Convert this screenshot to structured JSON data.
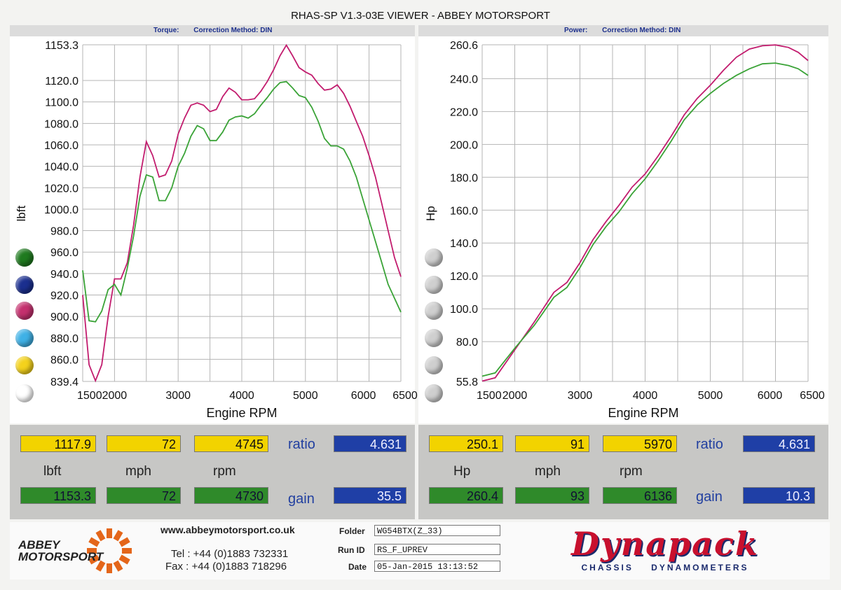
{
  "title": "RHAS-SP V1.3-03E VIEWER - ABBEY MOTORSPORT",
  "torque_header": {
    "label": "Torque:",
    "method": "Correction Method: DIN"
  },
  "power_header": {
    "label": "Power:",
    "method": "Correction Method: DIN"
  },
  "chart_data": [
    {
      "type": "line",
      "title": "Torque",
      "xlabel": "Engine RPM",
      "ylabel": "lbft",
      "xlim": [
        1500,
        6500
      ],
      "ylim": [
        839.4,
        1153.3
      ],
      "xticks": [
        "1500",
        "2000",
        "3000",
        "4000",
        "5000",
        "6000",
        "6500"
      ],
      "yticks": [
        "1153.3",
        "1120.0",
        "1100.0",
        "1080.0",
        "1060.0",
        "1040.0",
        "1020.0",
        "1000.0",
        "980.0",
        "960.0",
        "940.0",
        "920.0",
        "900.0",
        "880.0",
        "860.0",
        "839.4"
      ],
      "grid": true,
      "series": [
        {
          "color": "#c21c6e",
          "points": [
            [
              1500,
              920
            ],
            [
              1600,
              855
            ],
            [
              1700,
              840
            ],
            [
              1800,
              855
            ],
            [
              1900,
              900
            ],
            [
              2000,
              935
            ],
            [
              2100,
              935
            ],
            [
              2200,
              950
            ],
            [
              2300,
              985
            ],
            [
              2400,
              1030
            ],
            [
              2500,
              1063
            ],
            [
              2600,
              1050
            ],
            [
              2700,
              1030
            ],
            [
              2800,
              1032
            ],
            [
              2900,
              1045
            ],
            [
              3000,
              1070
            ],
            [
              3100,
              1085
            ],
            [
              3200,
              1097
            ],
            [
              3300,
              1099
            ],
            [
              3400,
              1097
            ],
            [
              3500,
              1091
            ],
            [
              3600,
              1093
            ],
            [
              3700,
              1105
            ],
            [
              3800,
              1113
            ],
            [
              3900,
              1109
            ],
            [
              4000,
              1102
            ],
            [
              4100,
              1102
            ],
            [
              4200,
              1103
            ],
            [
              4300,
              1110
            ],
            [
              4400,
              1119
            ],
            [
              4500,
              1130
            ],
            [
              4600,
              1143
            ],
            [
              4700,
              1153
            ],
            [
              4800,
              1143
            ],
            [
              4900,
              1132
            ],
            [
              5000,
              1128
            ],
            [
              5100,
              1125
            ],
            [
              5200,
              1117
            ],
            [
              5300,
              1111
            ],
            [
              5400,
              1112
            ],
            [
              5500,
              1116
            ],
            [
              5600,
              1108
            ],
            [
              5700,
              1096
            ],
            [
              5800,
              1082
            ],
            [
              5900,
              1068
            ],
            [
              6000,
              1050
            ],
            [
              6100,
              1030
            ],
            [
              6200,
              1005
            ],
            [
              6300,
              980
            ],
            [
              6400,
              955
            ],
            [
              6500,
              937
            ]
          ]
        },
        {
          "color": "#3aa337",
          "points": [
            [
              1500,
              943
            ],
            [
              1600,
              896
            ],
            [
              1700,
              895
            ],
            [
              1800,
              905
            ],
            [
              1900,
              925
            ],
            [
              2000,
              930
            ],
            [
              2100,
              920
            ],
            [
              2200,
              945
            ],
            [
              2300,
              975
            ],
            [
              2400,
              1012
            ],
            [
              2500,
              1032
            ],
            [
              2600,
              1030
            ],
            [
              2700,
              1008
            ],
            [
              2800,
              1008
            ],
            [
              2900,
              1020
            ],
            [
              3000,
              1040
            ],
            [
              3100,
              1052
            ],
            [
              3200,
              1068
            ],
            [
              3300,
              1078
            ],
            [
              3400,
              1075
            ],
            [
              3500,
              1064
            ],
            [
              3600,
              1064
            ],
            [
              3700,
              1072
            ],
            [
              3800,
              1083
            ],
            [
              3900,
              1086
            ],
            [
              4000,
              1087
            ],
            [
              4100,
              1085
            ],
            [
              4200,
              1089
            ],
            [
              4300,
              1097
            ],
            [
              4400,
              1104
            ],
            [
              4500,
              1112
            ],
            [
              4600,
              1118
            ],
            [
              4700,
              1119
            ],
            [
              4800,
              1113
            ],
            [
              4900,
              1106
            ],
            [
              5000,
              1104
            ],
            [
              5100,
              1095
            ],
            [
              5200,
              1082
            ],
            [
              5300,
              1066
            ],
            [
              5400,
              1059
            ],
            [
              5500,
              1059
            ],
            [
              5600,
              1056
            ],
            [
              5700,
              1045
            ],
            [
              5800,
              1030
            ],
            [
              5900,
              1010
            ],
            [
              6000,
              990
            ],
            [
              6100,
              970
            ],
            [
              6200,
              950
            ],
            [
              6300,
              930
            ],
            [
              6400,
              917
            ],
            [
              6500,
              904
            ]
          ]
        }
      ]
    },
    {
      "type": "line",
      "title": "Power",
      "xlabel": "Engine RPM",
      "ylabel": "Hp",
      "xlim": [
        1500,
        6500
      ],
      "ylim": [
        55.8,
        260.6
      ],
      "xticks": [
        "1500",
        "2000",
        "3000",
        "4000",
        "5000",
        "6000",
        "6500"
      ],
      "yticks": [
        "260.6",
        "240.0",
        "220.0",
        "200.0",
        "180.0",
        "160.0",
        "140.0",
        "120.0",
        "100.0",
        "80.0",
        "55.8"
      ],
      "grid": true,
      "series": [
        {
          "color": "#c21c6e",
          "points": [
            [
              1500,
              56
            ],
            [
              1700,
              58
            ],
            [
              2000,
              75
            ],
            [
              2300,
              92
            ],
            [
              2600,
              110
            ],
            [
              2800,
              116
            ],
            [
              3000,
              128
            ],
            [
              3200,
              142
            ],
            [
              3400,
              153
            ],
            [
              3600,
              163
            ],
            [
              3800,
              174
            ],
            [
              4000,
              182
            ],
            [
              4200,
              193
            ],
            [
              4400,
              205
            ],
            [
              4600,
              218
            ],
            [
              4800,
              228
            ],
            [
              5000,
              236
            ],
            [
              5200,
              245
            ],
            [
              5400,
              253
            ],
            [
              5600,
              258
            ],
            [
              5800,
              260
            ],
            [
              6000,
              260.5
            ],
            [
              6200,
              259
            ],
            [
              6350,
              256
            ],
            [
              6500,
              251
            ]
          ]
        },
        {
          "color": "#3aa337",
          "points": [
            [
              1500,
              59
            ],
            [
              1700,
              61
            ],
            [
              2000,
              76
            ],
            [
              2300,
              90
            ],
            [
              2600,
              107
            ],
            [
              2800,
              113
            ],
            [
              3000,
              125
            ],
            [
              3200,
              139
            ],
            [
              3400,
              150
            ],
            [
              3600,
              159
            ],
            [
              3800,
              170
            ],
            [
              4000,
              179
            ],
            [
              4200,
              190
            ],
            [
              4400,
              202
            ],
            [
              4600,
              215
            ],
            [
              4800,
              224
            ],
            [
              5000,
              231
            ],
            [
              5200,
              237
            ],
            [
              5400,
              242
            ],
            [
              5600,
              246
            ],
            [
              5800,
              249
            ],
            [
              6000,
              249.5
            ],
            [
              6200,
              248
            ],
            [
              6350,
              246
            ],
            [
              6500,
              242
            ]
          ]
        }
      ]
    }
  ],
  "legend_colors": [
    "#b8141a",
    "#1f7a1f",
    "#1b2f8f",
    "#c4306e",
    "#3fb1e6",
    "#f4d21c"
  ],
  "readouts": {
    "left": {
      "row1": [
        "1117.9",
        "72",
        "4745"
      ],
      "units": [
        "lbft",
        "mph",
        "rpm"
      ],
      "row2": [
        "1153.3",
        "72",
        "4730"
      ],
      "ratio_label": "ratio",
      "ratio": "4.631",
      "gain_label": "gain",
      "gain": "35.5"
    },
    "right": {
      "row1": [
        "250.1",
        "91",
        "5970"
      ],
      "units": [
        "Hp",
        "mph",
        "rpm"
      ],
      "row2": [
        "260.4",
        "93",
        "6136"
      ],
      "ratio_label": "ratio",
      "ratio": "4.631",
      "gain_label": "gain",
      "gain": "10.3"
    }
  },
  "footer": {
    "logo_text": "ABBEY MOTORSPORT",
    "website": "www.abbeymotorsport.co.uk",
    "tel": "Tel : +44 (0)1883 732331",
    "fax": "Fax : +44 (0)1883 718296",
    "folder_label": "Folder",
    "folder": "WG54BTX(Z_33)",
    "runid_label": "Run ID",
    "runid": "RS_F_UPREV",
    "date_label": "Date",
    "date": "05-Jan-2015  13:13:52",
    "brand": "Dynapack",
    "brand_sub": "CHASSIS    DYNAMOMETERS"
  }
}
